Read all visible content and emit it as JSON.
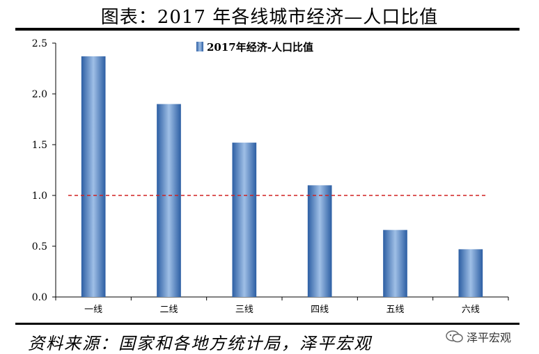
{
  "header": {
    "title": "图表：2017 年各线城市经济—人口比值"
  },
  "footer": {
    "source": "资料来源：国家和各地方统计局，泽平宏观",
    "watermark": "泽平宏观"
  },
  "colors": {
    "bar_dark": "#2c5ea3",
    "bar_light": "#9fbfe6",
    "reference_line": "#d02020"
  },
  "chart_data": {
    "type": "bar",
    "categories": [
      "一线",
      "二线",
      "三线",
      "四线",
      "五线",
      "六线"
    ],
    "series": [
      {
        "name": "2017年经济-人口比值",
        "values": [
          2.37,
          1.9,
          1.52,
          1.1,
          0.66,
          0.47
        ]
      }
    ],
    "yticks": [
      "0.0",
      "0.5",
      "1.0",
      "1.5",
      "2.0",
      "2.5"
    ],
    "ylim": [
      0,
      2.5
    ],
    "reference_line": 1.0,
    "legend": "top-center",
    "grid": false
  }
}
